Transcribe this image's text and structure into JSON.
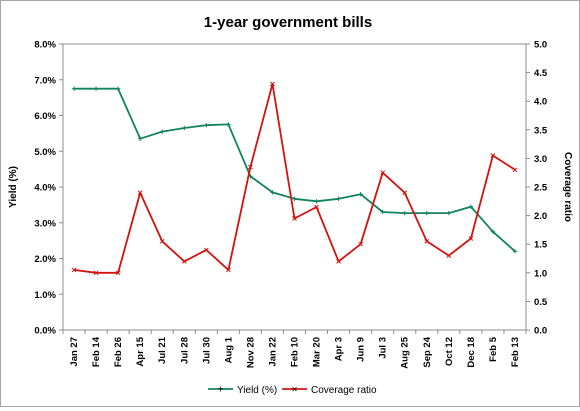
{
  "chart_data": {
    "type": "line",
    "title": "1-year government bills",
    "ylabel_left": "Yield (%)",
    "ylabel_right": "Coverage ratio",
    "categories": [
      "Jan 27",
      "Feb 14",
      "Feb 26",
      "Apr 15",
      "Jul 21",
      "Jul 28",
      "Jul 30",
      "Aug 1",
      "Nov 28",
      "Jan 22",
      "Feb 10",
      "Mar 20",
      "Apr 3",
      "Jun 9",
      "Jul 3",
      "Aug 25",
      "Sep 24",
      "Oct 12",
      "Dec 18",
      "Feb 5",
      "Feb 13"
    ],
    "left_axis": {
      "ylim": [
        0,
        8
      ],
      "ticks": [
        "0.0%",
        "1.0%",
        "2.0%",
        "3.0%",
        "4.0%",
        "5.0%",
        "6.0%",
        "7.0%",
        "8.0%"
      ]
    },
    "right_axis": {
      "ylim": [
        0,
        5
      ],
      "ticks": [
        "0.0",
        "0.5",
        "1.0",
        "1.5",
        "2.0",
        "2.5",
        "3.0",
        "3.5",
        "4.0",
        "4.5",
        "5.0"
      ]
    },
    "series": [
      {
        "name": "Yield (%)",
        "axis": "left",
        "color": "#11845a",
        "values": [
          6.75,
          6.75,
          6.75,
          5.35,
          5.55,
          5.65,
          5.73,
          5.75,
          4.3,
          3.85,
          3.67,
          3.6,
          3.67,
          3.8,
          3.3,
          3.27,
          3.27,
          3.27,
          3.45,
          2.75,
          2.2
        ]
      },
      {
        "name": "Coverage ratio",
        "axis": "right",
        "color": "#d2140f",
        "values": [
          1.05,
          1.0,
          1.0,
          2.4,
          1.55,
          1.2,
          1.4,
          1.05,
          2.85,
          4.3,
          1.95,
          2.15,
          1.2,
          1.5,
          2.75,
          2.4,
          1.55,
          1.3,
          1.6,
          3.05,
          2.8
        ]
      }
    ],
    "grid": false,
    "legend": "bottom"
  }
}
